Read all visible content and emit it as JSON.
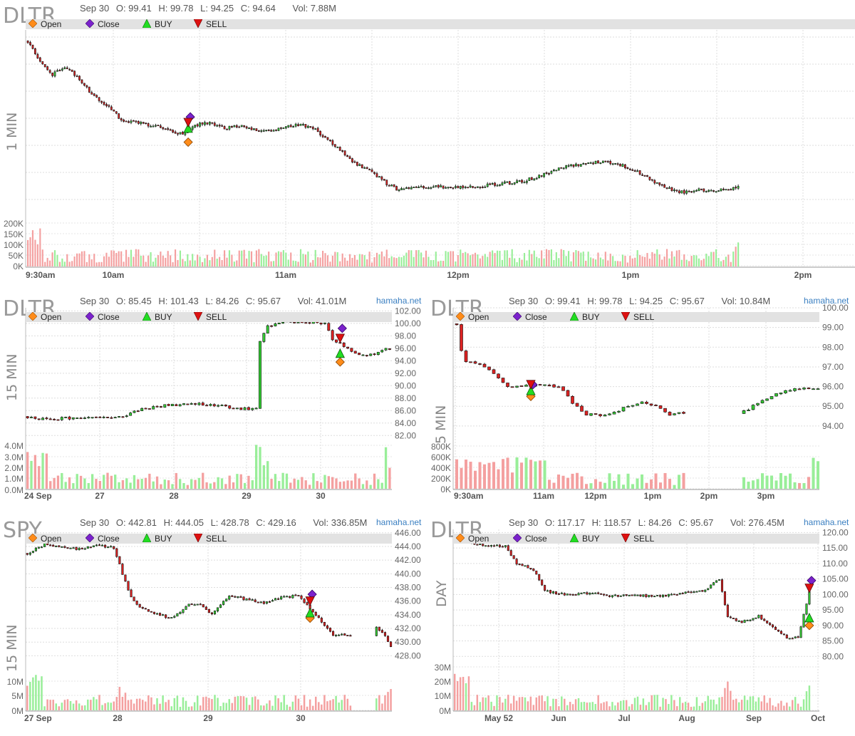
{
  "legend": {
    "open": "Open",
    "close": "Close",
    "buy": "BUY",
    "sell": "SELL"
  },
  "colors": {
    "up": "#33cc33",
    "down": "#dd2222",
    "open_marker": "#ff8c1a",
    "close_marker": "#7b22cc",
    "buy_marker": "#22dd22",
    "sell_marker": "#dd1111",
    "vol_up": "#99ee99",
    "vol_down": "#f4a0a0"
  },
  "panels": {
    "p1": {
      "symbol": "DLTR",
      "date": "Sep 30",
      "o": "O: 99.41",
      "h": "H: 99.78",
      "l": "L: 94.25",
      "c": "C: 94.64",
      "vol": "Vol: 7.88M",
      "site": "",
      "timeframe": "1 MIN"
    },
    "p2": {
      "symbol": "DLTR",
      "date": "Sep 30",
      "o": "O: 85.45",
      "h": "H: 101.43",
      "l": "L: 84.26",
      "c": "C: 95.67",
      "vol": "Vol: 41.01M",
      "site": "hamaha.net",
      "timeframe": "15 MIN"
    },
    "p3": {
      "symbol": "DLTR",
      "date": "Sep 30",
      "o": "O: 99.41",
      "h": "H: 99.78",
      "l": "L: 94.25",
      "c": "C: 95.67",
      "vol": "Vol: 10.84M",
      "site": "hamaha.net",
      "timeframe": "5 MIN"
    },
    "p4": {
      "symbol": "SPY",
      "date": "Sep 30",
      "o": "O: 442.81",
      "h": "H: 444.05",
      "l": "L: 428.78",
      "c": "C: 429.16",
      "vol": "Vol: 336.85M",
      "site": "hamaha.net",
      "timeframe": "15 MIN"
    },
    "p5": {
      "symbol": "DLTR",
      "date": "Sep 30",
      "o": "O: 117.17",
      "h": "H: 118.57",
      "l": "L: 84.26",
      "c": "C: 95.67",
      "vol": "Vol: 276.45M",
      "site": "hamaha.net",
      "timeframe": "DAY"
    }
  },
  "chart_data": [
    {
      "type": "candlestick",
      "id": "p1",
      "symbol": "DLTR",
      "interval": "1 MIN",
      "x_ticks": [
        "9:30am",
        "10am",
        "11am",
        "12pm",
        "1pm",
        "2pm"
      ],
      "ylim": [
        93.5,
        100.0
      ],
      "close_path": [
        [
          0,
          99.6
        ],
        [
          5,
          98.9
        ],
        [
          10,
          98.4
        ],
        [
          15,
          98.7
        ],
        [
          20,
          98.3
        ],
        [
          26,
          97.7
        ],
        [
          32,
          97.3
        ],
        [
          38,
          96.8
        ],
        [
          44,
          96.7
        ],
        [
          50,
          96.6
        ],
        [
          56,
          96.5
        ],
        [
          62,
          96.3
        ],
        [
          68,
          96.6
        ],
        [
          74,
          96.7
        ],
        [
          80,
          96.5
        ],
        [
          86,
          96.6
        ],
        [
          90,
          96.5
        ],
        [
          96,
          96.4
        ],
        [
          102,
          96.5
        ],
        [
          108,
          96.6
        ],
        [
          112,
          96.6
        ],
        [
          116,
          96.5
        ],
        [
          120,
          96.2
        ],
        [
          126,
          95.8
        ],
        [
          132,
          95.3
        ],
        [
          140,
          94.9
        ],
        [
          146,
          94.5
        ],
        [
          150,
          94.3
        ],
        [
          160,
          94.4
        ],
        [
          170,
          94.4
        ],
        [
          180,
          94.4
        ],
        [
          190,
          94.5
        ],
        [
          200,
          94.6
        ],
        [
          208,
          94.8
        ],
        [
          216,
          95.1
        ],
        [
          224,
          95.2
        ],
        [
          232,
          95.3
        ],
        [
          240,
          95.2
        ],
        [
          246,
          95.0
        ],
        [
          252,
          94.7
        ],
        [
          258,
          94.4
        ],
        [
          264,
          94.2
        ],
        [
          272,
          94.3
        ],
        [
          280,
          94.3
        ],
        [
          288,
          94.4
        ]
      ],
      "volume_axis": [
        "200K",
        "150K",
        "100K",
        "50K",
        "0K"
      ],
      "volume_max": 220000,
      "markers": {
        "open": 96.0,
        "close": 96.9,
        "buy": 96.5,
        "sell": 96.7,
        "at_minute": 65
      }
    },
    {
      "type": "candlestick",
      "id": "p2",
      "symbol": "DLTR",
      "interval": "15 MIN",
      "x_ticks": [
        "24 Sep",
        "27",
        "28",
        "29",
        "30"
      ],
      "y_ticks": [
        "102.00",
        "100.00",
        "98.00",
        "96.00",
        "94.00",
        "92.00",
        "90.00",
        "88.00",
        "86.00",
        "84.00",
        "82.00"
      ],
      "ylim": [
        81,
        102.5
      ],
      "close_path": [
        [
          0,
          85.0
        ],
        [
          3,
          84.6
        ],
        [
          10,
          84.8
        ],
        [
          20,
          84.8
        ],
        [
          26,
          85.0
        ],
        [
          28,
          86.0
        ],
        [
          36,
          86.8
        ],
        [
          44,
          87.1
        ],
        [
          50,
          86.8
        ],
        [
          56,
          86.3
        ],
        [
          60,
          86.3
        ],
        [
          61,
          97.2
        ],
        [
          63,
          99.5
        ],
        [
          66,
          100.2
        ],
        [
          70,
          100.3
        ],
        [
          75,
          100.2
        ],
        [
          78,
          99.9
        ],
        [
          80,
          97.5
        ],
        [
          84,
          96.0
        ],
        [
          87,
          94.8
        ],
        [
          90,
          95.0
        ],
        [
          92,
          95.3
        ],
        [
          95,
          96.1
        ]
      ],
      "volume_axis": [
        "4.0M",
        "3.0M",
        "2.0M",
        "1.0M",
        "0.0M"
      ],
      "volume_max": 4200000,
      "markers": {
        "open": 93.8,
        "close": 99.2,
        "buy": 95.2,
        "sell": 97.6,
        "at_bar": 82
      }
    },
    {
      "type": "candlestick",
      "id": "p3",
      "symbol": "DLTR",
      "interval": "5 MIN",
      "x_ticks": [
        "9:30am",
        "11am",
        "12pm",
        "1pm",
        "2pm",
        "3pm"
      ],
      "y_ticks": [
        "100.00",
        "99.00",
        "98.00",
        "97.00",
        "96.00",
        "95.00",
        "94.00"
      ],
      "ylim": [
        93.2,
        100.0
      ],
      "close_path": [
        [
          0,
          99.2
        ],
        [
          1,
          97.8
        ],
        [
          2,
          97.3
        ],
        [
          4,
          97.2
        ],
        [
          6,
          97.0
        ],
        [
          8,
          96.6
        ],
        [
          11,
          96.0
        ],
        [
          14,
          96.0
        ],
        [
          18,
          96.1
        ],
        [
          22,
          96.0
        ],
        [
          25,
          95.2
        ],
        [
          28,
          94.6
        ],
        [
          32,
          94.5
        ],
        [
          36,
          94.9
        ],
        [
          40,
          95.2
        ],
        [
          43,
          95.0
        ],
        [
          46,
          94.6
        ],
        [
          50,
          94.7
        ],
        [
          51,
          null
        ],
        [
          60,
          null
        ],
        [
          61,
          94.6
        ],
        [
          64,
          95.0
        ],
        [
          67,
          95.4
        ],
        [
          70,
          95.7
        ],
        [
          74,
          95.9
        ],
        [
          78,
          95.9
        ]
      ],
      "volume_axis": [
        "800K",
        "600K",
        "400K",
        "200K",
        "0K"
      ],
      "volume_max": 900000,
      "markers": {
        "open": 95.5,
        "close": 96.1,
        "buy": 95.8,
        "sell": 96.1,
        "at_bar": 16
      }
    },
    {
      "type": "candlestick",
      "id": "p4",
      "symbol": "SPY",
      "interval": "15 MIN",
      "x_ticks": [
        "27 Sep",
        "28",
        "29",
        "30"
      ],
      "y_ticks": [
        "446.00",
        "444.00",
        "442.00",
        "440.00",
        "438.00",
        "436.00",
        "434.00",
        "432.00",
        "430.00",
        "428.00"
      ],
      "ylim": [
        427,
        446.5
      ],
      "close_path": [
        [
          0,
          443.0
        ],
        [
          6,
          444.3
        ],
        [
          12,
          444.0
        ],
        [
          18,
          443.6
        ],
        [
          24,
          444.2
        ],
        [
          30,
          443.8
        ],
        [
          33,
          440.0
        ],
        [
          36,
          436.5
        ],
        [
          40,
          434.8
        ],
        [
          46,
          434.0
        ],
        [
          50,
          433.5
        ],
        [
          56,
          435.5
        ],
        [
          60,
          435.5
        ],
        [
          64,
          434.0
        ],
        [
          70,
          436.8
        ],
        [
          76,
          436.2
        ],
        [
          82,
          435.8
        ],
        [
          88,
          436.5
        ],
        [
          94,
          436.8
        ],
        [
          100,
          434.0
        ],
        [
          106,
          431.0
        ],
        [
          112,
          431.0
        ],
        [
          116,
          null
        ],
        [
          120,
          432.5
        ],
        [
          124,
          431.0
        ],
        [
          126,
          429.2
        ]
      ],
      "volume_axis": [
        "10M",
        "5M",
        "0M"
      ],
      "volume_max": 12000000,
      "markers": {
        "open": 433.5,
        "close": 437.0,
        "buy": 434.3,
        "sell": 436.0,
        "at_bar": 98
      }
    },
    {
      "type": "candlestick",
      "id": "p5",
      "symbol": "DLTR",
      "interval": "DAY",
      "x_ticks": [
        "May 52",
        "Jun",
        "Jul",
        "Aug",
        "Sep",
        "Oct"
      ],
      "y_ticks": [
        "120.00",
        "115.00",
        "110.00",
        "105.00",
        "100.00",
        "95.00",
        "90.00",
        "85.00",
        "80.00"
      ],
      "ylim": [
        78,
        121
      ],
      "close_path": [
        [
          0,
          117.5
        ],
        [
          10,
          116.0
        ],
        [
          18,
          115.5
        ],
        [
          22,
          110.0
        ],
        [
          28,
          108.0
        ],
        [
          32,
          101.0
        ],
        [
          40,
          100.0
        ],
        [
          48,
          100.5
        ],
        [
          56,
          99.5
        ],
        [
          66,
          99.5
        ],
        [
          76,
          99.8
        ],
        [
          82,
          100.5
        ],
        [
          88,
          101.0
        ],
        [
          94,
          105.0
        ],
        [
          97,
          93.0
        ],
        [
          102,
          91.0
        ],
        [
          108,
          93.0
        ],
        [
          114,
          89.0
        ],
        [
          118,
          86.0
        ],
        [
          122,
          86.0
        ],
        [
          126,
          101.0
        ]
      ],
      "volume_axis": [
        "30M",
        "20M",
        "10M",
        "0M"
      ],
      "volume_max": 34000000,
      "markers": {
        "open": 90.0,
        "close": 104.5,
        "buy": 92.5,
        "sell": 102.0,
        "at_bar": 126
      }
    }
  ]
}
